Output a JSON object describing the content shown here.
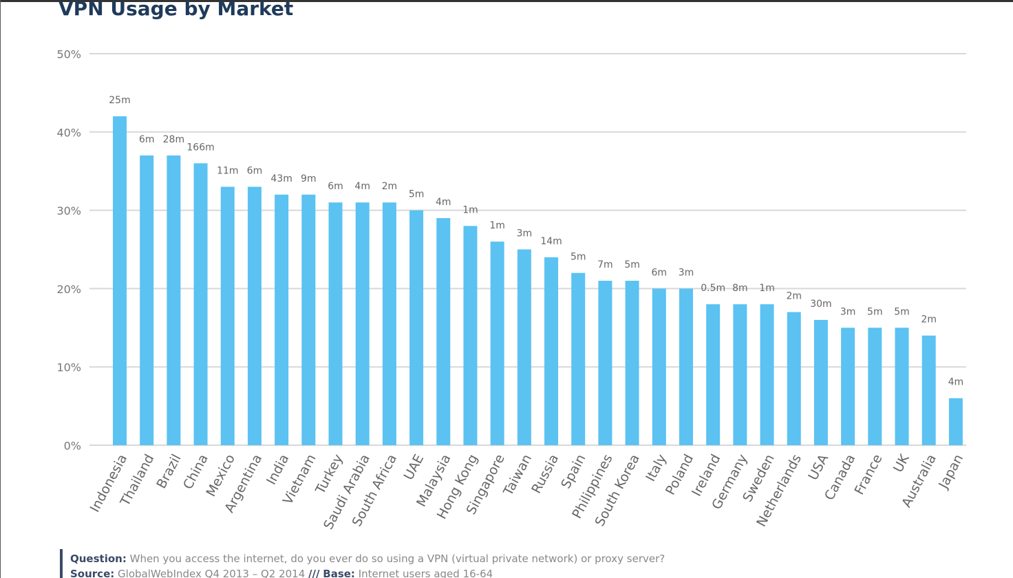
{
  "chart_data": {
    "type": "bar",
    "title": "VPN Usage by Market",
    "categories": [
      "Indonesia",
      "Thailand",
      "Brazil",
      "China",
      "Mexico",
      "Argentina",
      "India",
      "Vietnam",
      "Turkey",
      "Saudi Arabia",
      "South Africa",
      "UAE",
      "Malaysia",
      "Hong Kong",
      "Singapore",
      "Taiwan",
      "Russia",
      "Spain",
      "Philippines",
      "South Korea",
      "Italy",
      "Poland",
      "Ireland",
      "Germany",
      "Sweden",
      "Netherlands",
      "USA",
      "Canada",
      "France",
      "UK",
      "Australia",
      "Japan"
    ],
    "values": [
      42,
      37,
      37,
      36,
      33,
      33,
      32,
      32,
      31,
      31,
      31,
      30,
      29,
      28,
      26,
      25,
      24,
      22,
      21,
      21,
      20,
      20,
      18,
      18,
      18,
      17,
      16,
      15,
      15,
      15,
      14,
      6
    ],
    "bar_annotations": [
      "25m",
      "6m",
      "28m",
      "166m",
      "11m",
      "6m",
      "43m",
      "9m",
      "6m",
      "4m",
      "2m",
      "5m",
      "4m",
      "1m",
      "1m",
      "3m",
      "14m",
      "5m",
      "7m",
      "5m",
      "6m",
      "3m",
      "0.5m",
      "8m",
      "1m",
      "2m",
      "30m",
      "3m",
      "5m",
      "5m",
      "2m",
      "4m"
    ],
    "color": "#5bc2f2",
    "ylim": [
      0,
      50
    ],
    "yticks": [
      {
        "value": 0,
        "label": "0%"
      },
      {
        "value": 10,
        "label": "10%"
      },
      {
        "value": 20,
        "label": "20%"
      },
      {
        "value": 30,
        "label": "30%"
      },
      {
        "value": 40,
        "label": "40%"
      },
      {
        "value": 50,
        "label": "50%"
      }
    ],
    "grid": true,
    "footer": {
      "question_label": "Question:",
      "question": "When you access the internet, do you ever do so using a VPN (virtual private network) or proxy server?",
      "source_label": "Source:",
      "source": "GlobalWebIndex Q4 2013 – Q2 2014",
      "separator": "///",
      "base_label": "Base:",
      "base": "Internet users aged 16-64"
    }
  }
}
